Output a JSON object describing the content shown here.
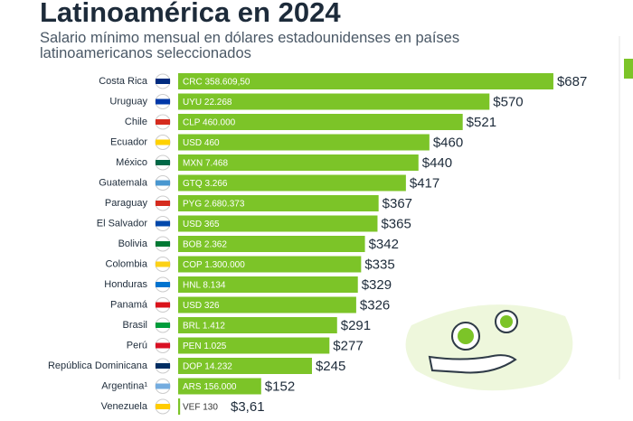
{
  "chart_data": {
    "type": "bar",
    "title": "Latinoamérica en 2024",
    "subtitle": "Salario mínimo mensual en dólares estadounidenses en países latinoamericanos seleccionados",
    "categories": [
      "Costa Rica",
      "Uruguay",
      "Chile",
      "Ecuador",
      "México",
      "Guatemala",
      "Paraguay",
      "El Salvador",
      "Bolivia",
      "Colombia",
      "Honduras",
      "Panamá",
      "Brasil",
      "Perú",
      "República Dominicana",
      "Argentina¹",
      "Venezuela"
    ],
    "values": [
      687,
      570,
      521,
      460,
      440,
      417,
      367,
      365,
      342,
      335,
      329,
      326,
      291,
      277,
      245,
      152,
      3.61
    ],
    "value_labels": [
      "$687",
      "$570",
      "$521",
      "$460",
      "$440",
      "$417",
      "$367",
      "$365",
      "$342",
      "$335",
      "$329",
      "$326",
      "$291",
      "$277",
      "$245",
      "$152",
      "$3,61"
    ],
    "local_labels": [
      "CRC 358.609,50",
      "UYU 22.268",
      "CLP 460.000",
      "USD 460",
      "MXN 7.468",
      "GTQ 3.266",
      "PYG 2.680.373",
      "USD 365",
      "BOB 2.362",
      "COP 1.300.000",
      "HNL 8.134",
      "USD 326",
      "BRL 1.412",
      "PEN 1.025",
      "DOP 14.232",
      "ARS 156.000",
      "VEF 130"
    ],
    "color": "#7cc428"
  }
}
